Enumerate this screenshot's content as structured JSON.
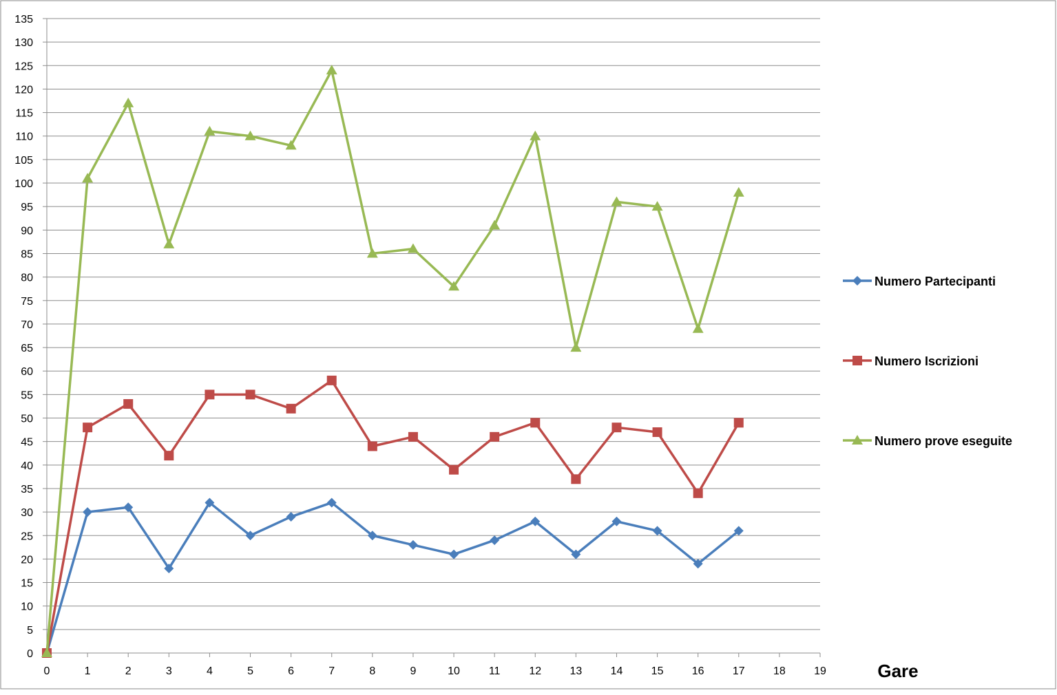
{
  "chart_data": {
    "type": "line",
    "title": "",
    "xlabel": "Gare",
    "ylabel": "",
    "xlim": [
      0,
      19
    ],
    "ylim": [
      0,
      135
    ],
    "x_ticks": [
      0,
      1,
      2,
      3,
      4,
      5,
      6,
      7,
      8,
      9,
      10,
      11,
      12,
      13,
      14,
      15,
      16,
      17,
      18,
      19
    ],
    "y_ticks": [
      0,
      5,
      10,
      15,
      20,
      25,
      30,
      35,
      40,
      45,
      50,
      55,
      60,
      65,
      70,
      75,
      80,
      85,
      90,
      95,
      100,
      105,
      110,
      115,
      120,
      125,
      130,
      135
    ],
    "grid": "horizontal",
    "legend_position": "right",
    "x": [
      0,
      1,
      2,
      3,
      4,
      5,
      6,
      7,
      8,
      9,
      10,
      11,
      12,
      13,
      14,
      15,
      16,
      17
    ],
    "series": [
      {
        "name": "Numero Partecipanti",
        "color": "#4a7ebb",
        "marker": "diamond",
        "values": [
          0,
          30,
          31,
          18,
          32,
          25,
          29,
          32,
          25,
          23,
          21,
          24,
          28,
          21,
          28,
          26,
          19,
          26
        ]
      },
      {
        "name": "Numero Iscrizioni",
        "color": "#be4b48",
        "marker": "square",
        "values": [
          0,
          48,
          53,
          42,
          55,
          55,
          52,
          58,
          44,
          46,
          39,
          46,
          49,
          37,
          48,
          47,
          34,
          49
        ]
      },
      {
        "name": "Numero prove eseguite",
        "color": "#98b954",
        "marker": "triangle",
        "values": [
          0,
          101,
          117,
          87,
          111,
          110,
          108,
          124,
          85,
          86,
          78,
          91,
          110,
          65,
          96,
          95,
          69,
          98
        ]
      }
    ]
  }
}
